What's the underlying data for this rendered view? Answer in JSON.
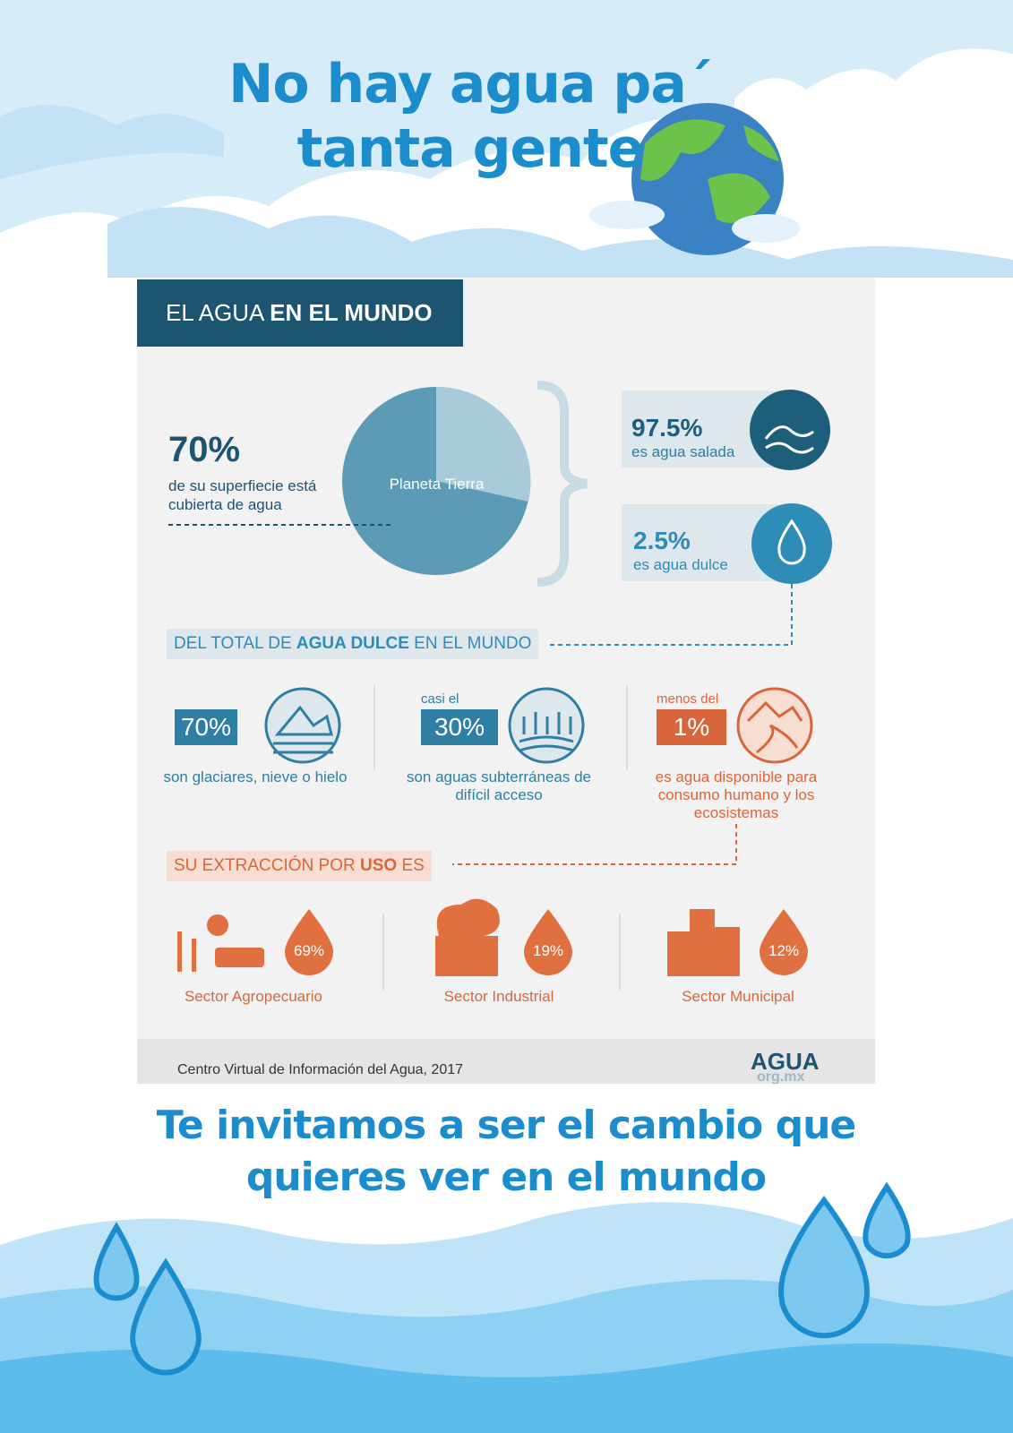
{
  "header": {
    "title": "No hay agua pa´ tanta gente"
  },
  "panel": {
    "heading": {
      "light": "EL AGUA ",
      "bold": "EN EL MUNDO"
    },
    "surface": {
      "value": "70%",
      "text": "de su superfiecie está cubierta de agua",
      "planet": "Planeta Tierra"
    },
    "salt": {
      "value": "97.5%",
      "text": "es agua salada"
    },
    "fresh": {
      "value": "2.5%",
      "text": "es agua dulce"
    },
    "fresh_heading": {
      "before": "DEL TOTAL DE ",
      "bold": "AGUA DULCE",
      "after": " EN EL MUNDO"
    },
    "fresh_items": [
      {
        "value": "70%",
        "text": "son glaciares, nieve o hielo"
      },
      {
        "prefix": "casi el",
        "value": "30%",
        "text": "son aguas subterráneas de difícil acceso"
      },
      {
        "prefix": "menos del",
        "value": "1%",
        "text": "es agua disponible para consumo humano y los ecosistemas"
      }
    ],
    "use_heading": {
      "before": "SU EXTRACCIÓN POR ",
      "bold": "USO",
      "after": " ES"
    },
    "sectors": [
      {
        "value": "69%",
        "label": "Sector Agropecuario"
      },
      {
        "value": "19%",
        "label": "Sector Industrial"
      },
      {
        "value": "12%",
        "label": "Sector Municipal"
      }
    ],
    "source": "Centro Virtual de Información del Agua, 2017",
    "logo": {
      "main": "AGUA",
      "sub": "org.mx"
    }
  },
  "footer": {
    "text": "Te invitamos a ser el cambio que quieres ver en el mundo"
  }
}
